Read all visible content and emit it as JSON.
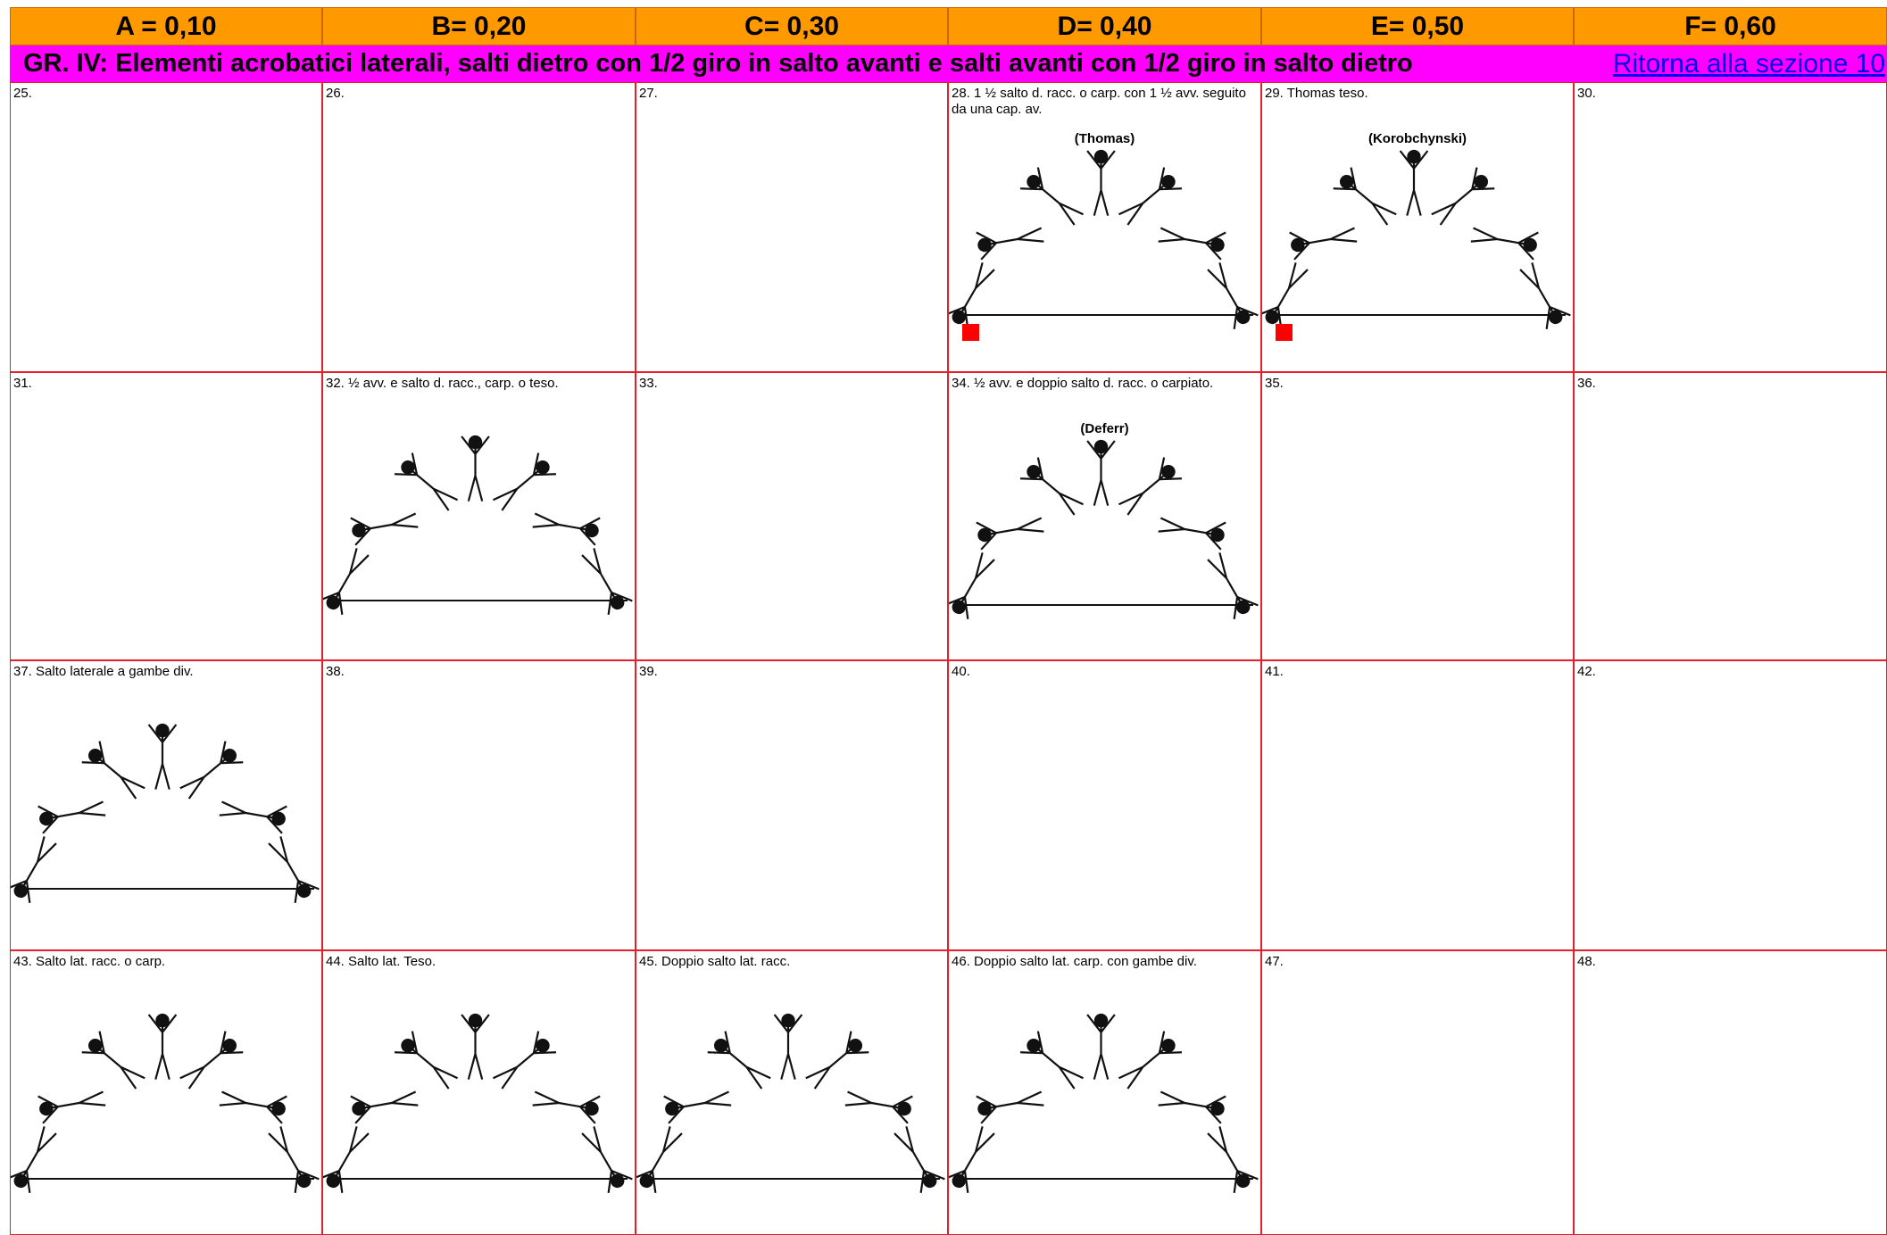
{
  "header": {
    "columns": [
      "A = 0,10",
      "B= 0,20",
      "C= 0,30",
      "D= 0,40",
      "E= 0,50",
      "F= 0,60"
    ]
  },
  "group": {
    "title": "GR. IV:  Elementi acrobatici laterali, salti dietro con 1/2 giro in salto avanti e salti avanti con 1/2 giro in salto dietro",
    "link": "Ritorna alla sezione 10"
  },
  "rows": [
    [
      {
        "label": "25."
      },
      {
        "label": "26."
      },
      {
        "label": "27."
      },
      {
        "label": "28.  1 ½  salto d. racc. o carp. con 1 ½  avv. seguito da una cap. av.",
        "name": "(Thomas)",
        "illustration": true,
        "marked": true
      },
      {
        "label": "29.  Thomas teso.",
        "name": "(Korobchynski)",
        "illustration": true,
        "marked": true
      },
      {
        "label": "30."
      }
    ],
    [
      {
        "label": "31."
      },
      {
        "label": "32.  ½ avv. e salto d. racc., carp. o teso.",
        "illustration": true
      },
      {
        "label": "33."
      },
      {
        "label": "34.  ½ avv. e doppio salto d. racc. o carpiato.",
        "name": "(Deferr)",
        "illustration": true
      },
      {
        "label": "35."
      },
      {
        "label": "36."
      }
    ],
    [
      {
        "label": "37.  Salto laterale a gambe div.",
        "illustration": true
      },
      {
        "label": "38."
      },
      {
        "label": "39."
      },
      {
        "label": "40."
      },
      {
        "label": "41."
      },
      {
        "label": "42."
      }
    ],
    [
      {
        "label": "43.  Salto lat. racc. o carp.",
        "illustration": true
      },
      {
        "label": "44.  Salto lat. Teso.",
        "illustration": true
      },
      {
        "label": "45.  Doppio salto lat. racc.",
        "illustration": true
      },
      {
        "label": "46.  Doppio salto lat. carp. con gambe div.",
        "illustration": true
      },
      {
        "label": "47."
      },
      {
        "label": "48."
      }
    ]
  ]
}
